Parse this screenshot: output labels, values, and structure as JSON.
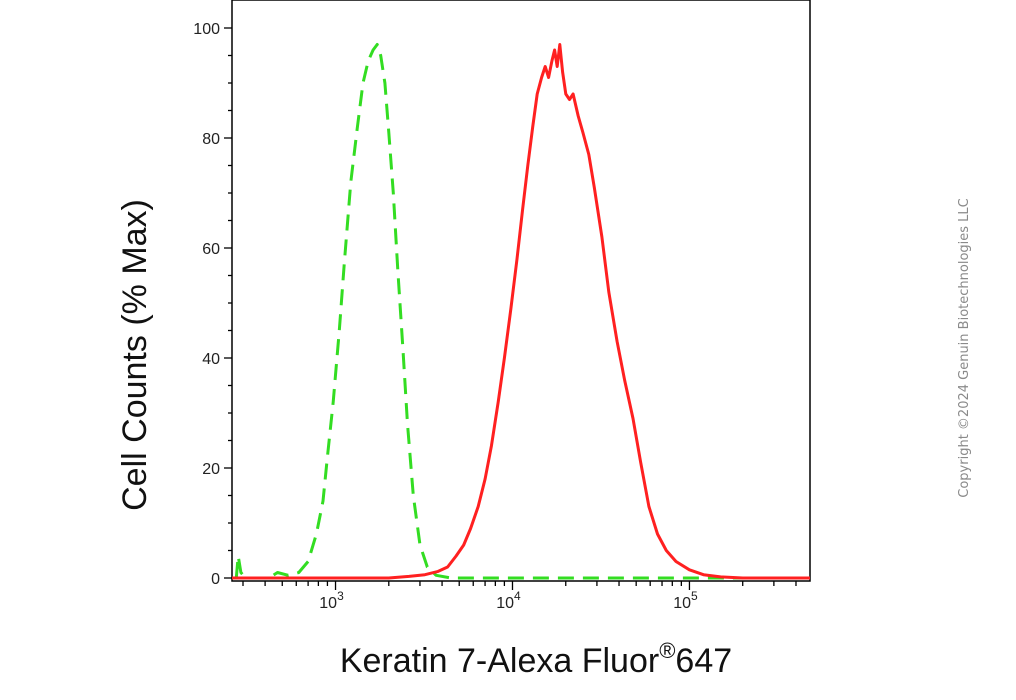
{
  "chart_data": {
    "type": "area",
    "xlabel": "Keratin 7-Alexa Fluor",
    "xlabel_sup": "®",
    "xlabel_suffix": "647",
    "ylabel": "Cell Counts (% Max)",
    "x_scale": "log",
    "xlim": [
      260,
      480000
    ],
    "ylim": [
      0,
      100
    ],
    "y_ticks": [
      0,
      20,
      40,
      60,
      80,
      100
    ],
    "x_ticks": [
      {
        "value": 1000,
        "base": "10",
        "exp": "3"
      },
      {
        "value": 10000,
        "base": "10",
        "exp": "4"
      },
      {
        "value": 100000,
        "base": "10",
        "exp": "5"
      }
    ],
    "series": [
      {
        "color": "#33dd22",
        "dash": true,
        "points": [
          [
            275,
            0
          ],
          [
            282,
            4
          ],
          [
            292,
            1
          ],
          [
            310,
            0
          ],
          [
            420,
            0
          ],
          [
            470,
            1
          ],
          [
            540,
            0.5
          ],
          [
            620,
            1
          ],
          [
            700,
            3
          ],
          [
            780,
            8
          ],
          [
            850,
            14
          ],
          [
            900,
            22
          ],
          [
            970,
            32
          ],
          [
            1050,
            45
          ],
          [
            1120,
            57
          ],
          [
            1220,
            72
          ],
          [
            1330,
            82
          ],
          [
            1430,
            90
          ],
          [
            1530,
            94
          ],
          [
            1630,
            96
          ],
          [
            1720,
            97
          ],
          [
            1800,
            95
          ],
          [
            1900,
            90
          ],
          [
            2000,
            81
          ],
          [
            2120,
            70
          ],
          [
            2250,
            56
          ],
          [
            2400,
            42
          ],
          [
            2550,
            28
          ],
          [
            2750,
            15
          ],
          [
            3000,
            6
          ],
          [
            3300,
            2
          ],
          [
            3700,
            0.5
          ],
          [
            4500,
            0
          ],
          [
            7000,
            0
          ],
          [
            15000,
            0
          ],
          [
            40000,
            0
          ],
          [
            100000,
            0
          ],
          [
            480000,
            0
          ]
        ]
      },
      {
        "color": "#ff2020",
        "dash": false,
        "points": [
          [
            260,
            0
          ],
          [
            2000,
            0
          ],
          [
            2600,
            0.3
          ],
          [
            3200,
            0.6
          ],
          [
            3800,
            1.2
          ],
          [
            4300,
            2
          ],
          [
            4800,
            4
          ],
          [
            5300,
            6
          ],
          [
            5800,
            9
          ],
          [
            6400,
            13
          ],
          [
            7000,
            18
          ],
          [
            7600,
            24
          ],
          [
            8300,
            32
          ],
          [
            9000,
            40
          ],
          [
            9800,
            49
          ],
          [
            10600,
            58
          ],
          [
            11400,
            67
          ],
          [
            12200,
            75
          ],
          [
            13000,
            82
          ],
          [
            13800,
            88
          ],
          [
            14600,
            91
          ],
          [
            15300,
            93
          ],
          [
            16000,
            91
          ],
          [
            16700,
            94
          ],
          [
            17300,
            96
          ],
          [
            17900,
            93
          ],
          [
            18500,
            97
          ],
          [
            19200,
            92
          ],
          [
            20000,
            88
          ],
          [
            21000,
            87
          ],
          [
            22000,
            88
          ],
          [
            23500,
            84
          ],
          [
            25000,
            81
          ],
          [
            27000,
            77
          ],
          [
            29000,
            71
          ],
          [
            32000,
            62
          ],
          [
            35000,
            52
          ],
          [
            39000,
            43
          ],
          [
            43000,
            36
          ],
          [
            48000,
            29
          ],
          [
            53000,
            21
          ],
          [
            59000,
            13
          ],
          [
            66000,
            8
          ],
          [
            74000,
            5
          ],
          [
            84000,
            3
          ],
          [
            100000,
            1.5
          ],
          [
            120000,
            0.6
          ],
          [
            150000,
            0.2
          ],
          [
            200000,
            0
          ],
          [
            480000,
            0
          ]
        ]
      }
    ]
  },
  "copyright": "Copyright ©2024 Genuin Biotechnologies LLC"
}
